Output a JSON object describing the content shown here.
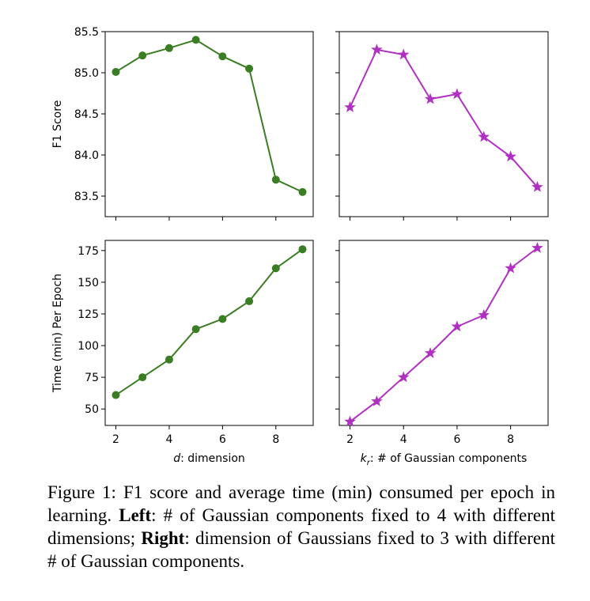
{
  "chart_data": [
    {
      "type": "line",
      "panel": "top-left",
      "x": [
        2,
        3,
        4,
        5,
        6,
        7,
        8,
        9
      ],
      "values": [
        85.01,
        85.21,
        85.3,
        85.4,
        85.2,
        85.05,
        83.7,
        83.55
      ],
      "xlim": [
        1.6,
        9.4
      ],
      "ylim": [
        83.25,
        85.5
      ],
      "yticks": [
        83.5,
        84.0,
        84.5,
        85.0,
        85.5
      ],
      "ytick_labels": [
        "83.5",
        "84.0",
        "84.5",
        "85.0",
        "85.5"
      ],
      "xticks": [
        2,
        4,
        6,
        8
      ],
      "show_xtick_labels": false,
      "ylabel": "F1 Score",
      "xlabel": "",
      "color": "#3a7d22",
      "marker": "circle"
    },
    {
      "type": "line",
      "panel": "top-right",
      "x": [
        2,
        3,
        4,
        5,
        6,
        7,
        8,
        9
      ],
      "values": [
        84.58,
        85.28,
        85.22,
        84.68,
        84.74,
        84.22,
        83.98,
        83.61
      ],
      "xlim": [
        1.6,
        9.4
      ],
      "ylim": [
        83.25,
        85.5
      ],
      "yticks": [
        83.5,
        84.0,
        84.5,
        85.0,
        85.5
      ],
      "xticks": [
        2,
        4,
        6,
        8
      ],
      "show_xtick_labels": false,
      "ylabel": "",
      "xlabel": "",
      "color": "#b031c1",
      "marker": "star"
    },
    {
      "type": "line",
      "panel": "bottom-left",
      "x": [
        2,
        3,
        4,
        5,
        6,
        7,
        8,
        9
      ],
      "values": [
        61,
        75,
        89,
        113,
        121,
        135,
        161,
        176
      ],
      "xlim": [
        1.6,
        9.4
      ],
      "ylim": [
        37,
        183
      ],
      "yticks": [
        50,
        75,
        100,
        125,
        150,
        175
      ],
      "ytick_labels": [
        "50",
        "75",
        "100",
        "125",
        "150",
        "175"
      ],
      "xticks": [
        2,
        4,
        6,
        8
      ],
      "xtick_labels": [
        "2",
        "4",
        "6",
        "8"
      ],
      "show_xtick_labels": true,
      "ylabel": "Time (min) Per Epoch",
      "xlabel_italic": "d",
      "xlabel": ": dimension",
      "color": "#3a7d22",
      "marker": "circle"
    },
    {
      "type": "line",
      "panel": "bottom-right",
      "x": [
        2,
        3,
        4,
        5,
        6,
        7,
        8,
        9
      ],
      "values": [
        40,
        56,
        75,
        94,
        115,
        124,
        161,
        177
      ],
      "xlim": [
        1.6,
        9.4
      ],
      "ylim": [
        37,
        183
      ],
      "yticks": [
        50,
        75,
        100,
        125,
        150,
        175
      ],
      "xticks": [
        2,
        4,
        6,
        8
      ],
      "xtick_labels": [
        "2",
        "4",
        "6",
        "8"
      ],
      "show_xtick_labels": true,
      "ylabel": "",
      "xlabel_italic": "k",
      "xlabel_sub": "r",
      "xlabel": ": # of Gaussian components",
      "color": "#b031c1",
      "marker": "star"
    }
  ],
  "caption": {
    "prefix": "Figure 1:  F1 score and average time (min) consumed per epoch in learning. ",
    "left_bold": "Left",
    "left_text": ": # of Gaussian components fixed to 4 with different dimensions; ",
    "right_bold": "Right",
    "right_text": ": dimension of Gaussians fixed to 3 with different # of Gaussian components."
  }
}
